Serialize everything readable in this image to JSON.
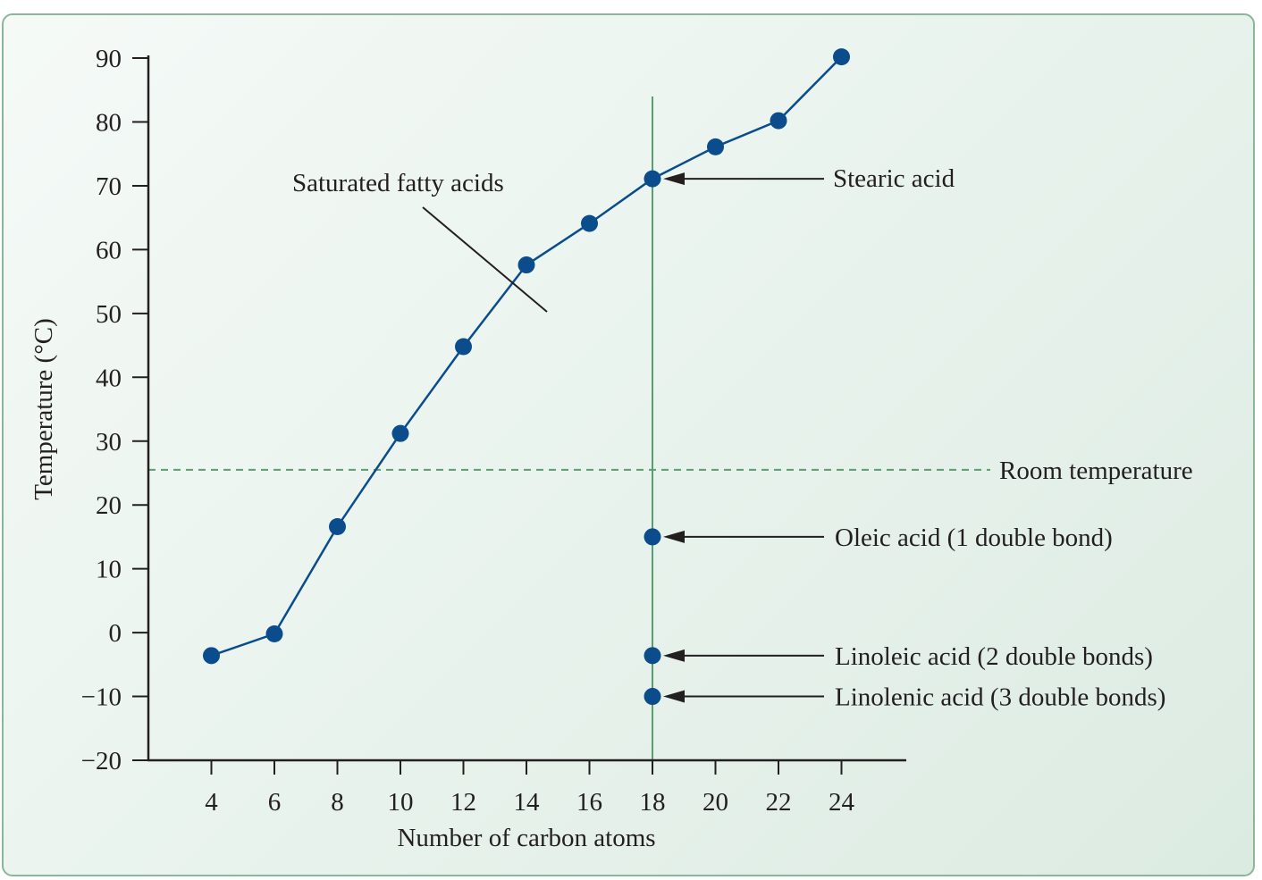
{
  "chart_data": {
    "type": "line",
    "title": "",
    "xlabel": "Number of carbon atoms",
    "ylabel": "Temperature (°C)",
    "xlim": [
      2,
      24
    ],
    "ylim": [
      -20,
      90
    ],
    "x_ticks": [
      "4",
      "6",
      "8",
      "10",
      "12",
      "14",
      "16",
      "18",
      "20",
      "22",
      "24"
    ],
    "y_ticks": [
      "90",
      "80",
      "70",
      "60",
      "50",
      "40",
      "30",
      "20",
      "10",
      "0",
      "−10",
      "−20"
    ],
    "grid": false,
    "series": [
      {
        "name": "Saturated fatty acids",
        "x": [
          4,
          6,
          8,
          10,
          12,
          14,
          16,
          18,
          20,
          22,
          24
        ],
        "y": [
          -3.6,
          -0.2,
          16.6,
          31.2,
          44.8,
          57.6,
          64.1,
          71.1,
          76.1,
          80.2,
          90.2
        ]
      }
    ],
    "unsaturated_points": [
      {
        "x": 18,
        "y": 15.0,
        "label": "Oleic acid (1 double bond)"
      },
      {
        "x": 18,
        "y": -3.6,
        "label": "Linoleic acid (2 double bonds)"
      },
      {
        "x": 18,
        "y": -10.0,
        "label": "Linolenic acid (3 double bonds)"
      }
    ],
    "reference_lines": {
      "room_temperature": {
        "y": 25.5,
        "label": "Room temperature"
      },
      "vertical_x": 18
    },
    "annotations": {
      "stearic": {
        "x": 18,
        "y": 71.1,
        "label": "Stearic acid"
      },
      "saturated_label": "Saturated fatty acids"
    },
    "colors": {
      "marker": "#0a4c8c",
      "line": "#0a4c8c",
      "reference": "#5a9e70",
      "axis": "#231f20"
    }
  }
}
